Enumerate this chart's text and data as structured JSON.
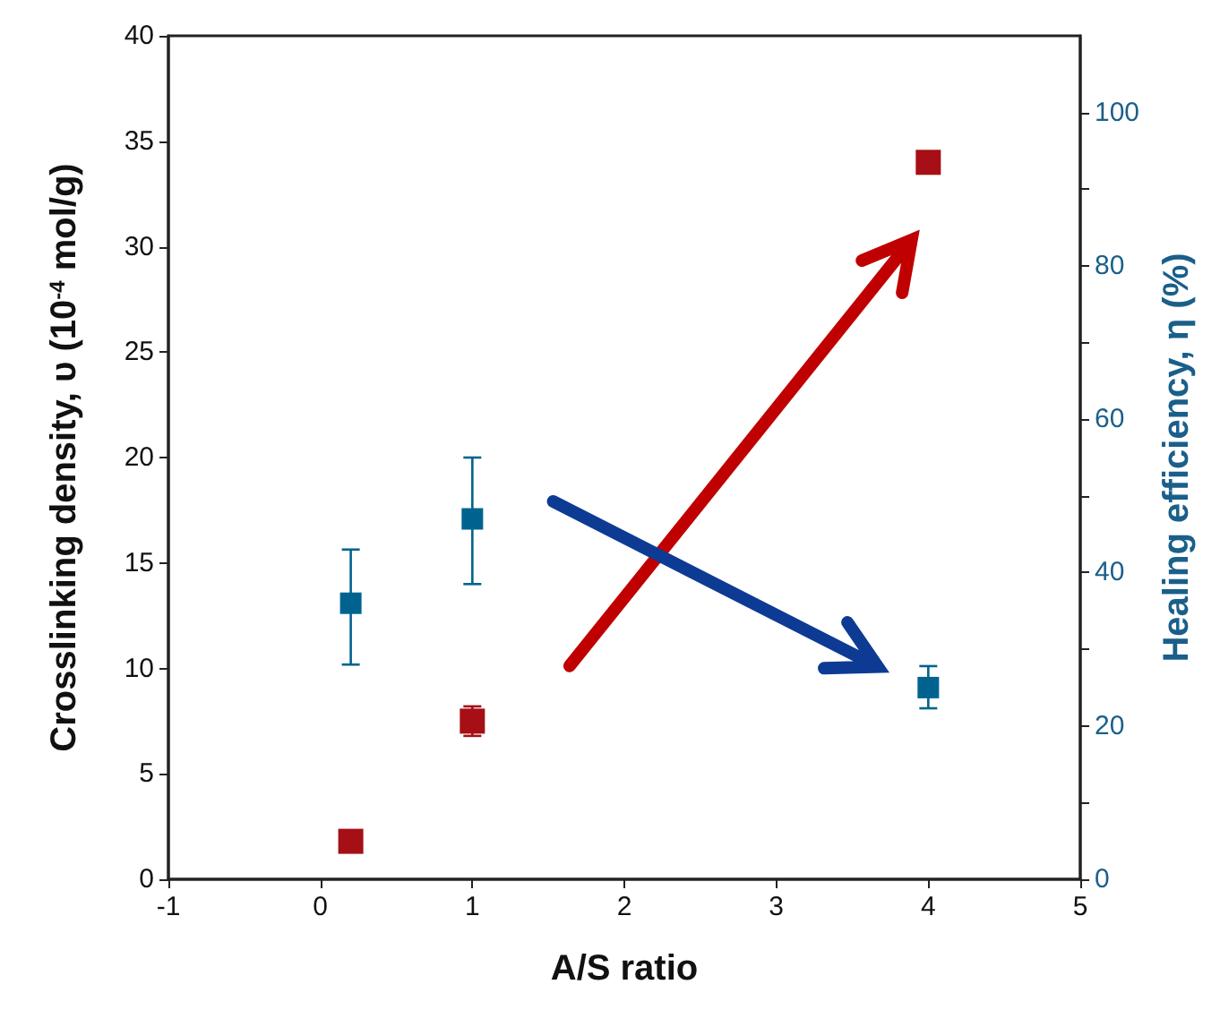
{
  "chart_data": {
    "type": "scatter",
    "xlabel": "A/S ratio",
    "ylabel": "Crosslinking density, υ (10$^{-4}$ mol/g)",
    "y2label": "Healing efficiency, η (%)",
    "x": [
      0.2,
      1,
      4
    ],
    "series": [
      {
        "color": "#a50f15",
        "values": [
          1.8,
          7.5,
          34
        ],
        "errors": [
          null,
          [
            6.8,
            8.2
          ],
          null
        ]
      },
      {
        "color": "#00638f",
        "axis": "y2",
        "values": [
          36,
          47,
          25
        ],
        "errors": [
          [
            28,
            43
          ],
          [
            38.5,
            55
          ],
          [
            22.3,
            27.8
          ]
        ]
      }
    ],
    "xlim": [
      -1,
      5
    ],
    "xticks": [
      -1,
      0,
      1,
      2,
      3,
      4,
      5
    ],
    "ylim": [
      0,
      40
    ],
    "yticks": [
      0,
      5,
      10,
      15,
      20,
      25,
      30,
      35,
      40
    ],
    "y2lim": [
      0,
      110
    ],
    "y2ticks": [
      0,
      {
        "value": 10,
        "label": null
      },
      20,
      {
        "value": 30,
        "label": null
      },
      40,
      {
        "value": 50,
        "label": null
      },
      60,
      {
        "value": 70,
        "label": null
      },
      80,
      {
        "value": 90,
        "label": null
      },
      100
    ],
    "marker": "square"
  }
}
